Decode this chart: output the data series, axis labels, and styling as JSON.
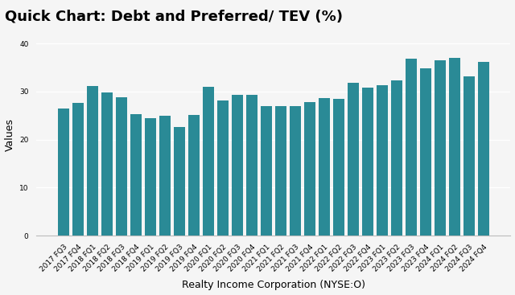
{
  "title": "Quick Chart: Debt and Preferred/ TEV (%)",
  "xlabel": "Realty Income Corporation (NYSE:O)",
  "ylabel": "Values",
  "bar_color": "#2a8a96",
  "background_color": "#f5f5f5",
  "plot_bg_color": "#f5f5f5",
  "grid_color": "#ffffff",
  "ylim": [
    0,
    42
  ],
  "yticks": [
    0,
    10,
    20,
    30,
    40
  ],
  "categories": [
    "2017 FQ3",
    "2017 FQ4",
    "2018 FQ1",
    "2018 FQ2",
    "2018 FQ3",
    "2018 FQ4",
    "2019 FQ1",
    "2019 FQ2",
    "2019 FQ3",
    "2019 FQ4",
    "2020 FQ1",
    "2020 FQ2",
    "2020 FQ3",
    "2020 FQ4",
    "2021 FQ1",
    "2021 FQ2",
    "2021 FQ3",
    "2021 FQ4",
    "2022 FQ1",
    "2022 FQ2",
    "2022 FQ3",
    "2022 FQ4",
    "2023 FQ1",
    "2023 FQ2",
    "2023 FQ3",
    "2023 FQ4",
    "2024 FQ1",
    "2024 FQ2",
    "2024 FQ3",
    "2024 FQ4"
  ],
  "values": [
    26.4,
    27.7,
    31.1,
    29.8,
    28.9,
    25.3,
    24.5,
    24.9,
    22.7,
    25.1,
    31.0,
    28.2,
    29.4,
    29.3,
    26.9,
    26.9,
    26.9,
    27.8,
    28.7,
    28.5,
    31.8,
    30.9,
    31.4,
    32.3,
    36.9,
    34.8,
    36.5,
    37.0,
    33.2,
    36.2
  ],
  "title_fontsize": 13,
  "axis_label_fontsize": 9,
  "tick_fontsize": 6.5
}
